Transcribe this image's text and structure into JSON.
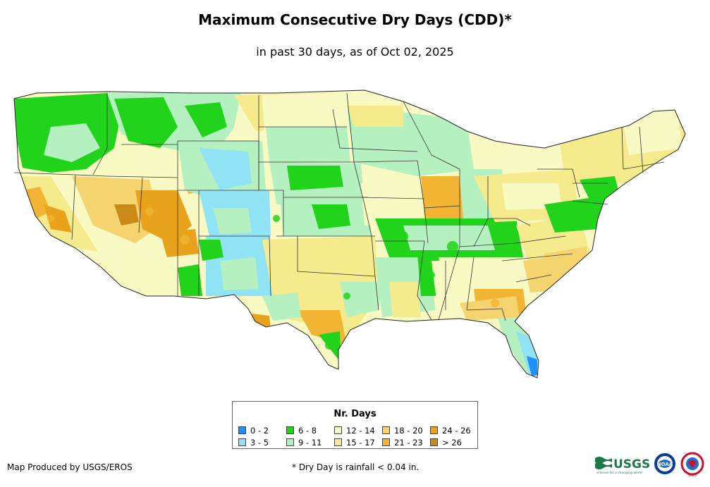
{
  "header": {
    "title": "Maximum Consecutive Dry Days (CDD)*",
    "subtitle": "in past 30 days, as of Oct 02, 2025"
  },
  "map": {
    "region": "Contiguous United States",
    "variable": "Maximum Consecutive Dry Days"
  },
  "legend": {
    "title": "Nr. Days",
    "items": [
      {
        "label": "0 - 2",
        "color": "#1e90ff"
      },
      {
        "label": "3 - 5",
        "color": "#8fe3f5"
      },
      {
        "label": "6 - 8",
        "color": "#22d31c"
      },
      {
        "label": "9 - 11",
        "color": "#b4f0c0"
      },
      {
        "label": "12 - 14",
        "color": "#f9f9c4"
      },
      {
        "label": "15 - 17",
        "color": "#f5ea8c"
      },
      {
        "label": "18 - 20",
        "color": "#f5d36e"
      },
      {
        "label": "21 - 23",
        "color": "#f1b533"
      },
      {
        "label": "24 - 26",
        "color": "#e8a21c"
      },
      {
        "label": "> 26",
        "color": "#c98a18"
      }
    ]
  },
  "footer": {
    "credit": "Map Produced by USGS/EROS",
    "footnote": "* Dry Day is rainfall < 0.04 in.",
    "usgs_logo_text": "USGS",
    "usgs_tagline": "science for a changing world",
    "noaa_logo_text": "NOAA",
    "nws_logo_text": "NWS"
  }
}
